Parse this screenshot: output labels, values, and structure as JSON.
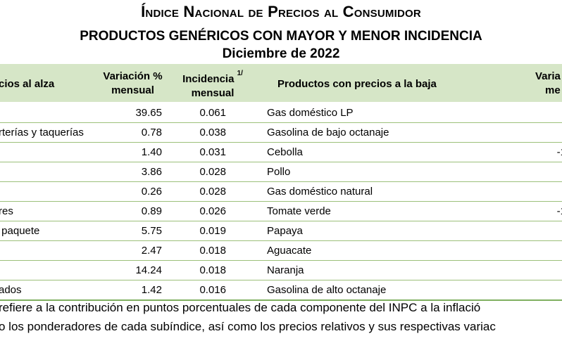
{
  "title": {
    "line1": "Índice Nacional de Precios al Consumidor",
    "line2": "PRODUCTOS GENÉRICOS CON MAYOR Y MENOR INCIDENCIA",
    "line3": "Diciembre de 2022"
  },
  "headers": {
    "up_products": "cios al alza",
    "variation_line1": "Variación %",
    "variation_line2": "mensual",
    "incidence_line1": "Incidencia",
    "incidence_sup": "1/",
    "incidence_line2": "mensual",
    "down_products": "Productos con precios a la baja",
    "down_variation_line1": "Varia",
    "down_variation_line2": "me"
  },
  "rows": [
    {
      "up": "",
      "var": "39.65",
      "inc": "0.061",
      "down": "Gas doméstico LP",
      "dvar": "-"
    },
    {
      "up": "rterías y taquerías",
      "var": "0.78",
      "inc": "0.038",
      "down": "Gasolina de bajo octanaje",
      "dvar": "-"
    },
    {
      "up": "",
      "var": "1.40",
      "inc": "0.031",
      "down": "Cebolla",
      "dvar": "-1"
    },
    {
      "up": "",
      "var": "3.86",
      "inc": "0.028",
      "down": "Pollo",
      "dvar": "-"
    },
    {
      "up": "",
      "var": "0.26",
      "inc": "0.028",
      "down": "Gas doméstico natural",
      "dvar": "-"
    },
    {
      "up": "res",
      "var": "0.89",
      "inc": "0.026",
      "down": "Tomate verde",
      "dvar": "-1"
    },
    {
      "up": " paquete",
      "var": "5.75",
      "inc": "0.019",
      "down": "Papaya",
      "dvar": "-"
    },
    {
      "up": "",
      "var": "2.47",
      "inc": "0.018",
      "down": "Aguacate",
      "dvar": "-"
    },
    {
      "up": "",
      "var": "14.24",
      "inc": "0.018",
      "down": "Naranja",
      "dvar": "-"
    },
    {
      "up": "ados",
      "var": "1.42",
      "inc": "0.016",
      "down": "Gasolina de alto octanaje",
      "dvar": "-"
    }
  ],
  "notes": {
    "line1": "refiere a la contribución en puntos porcentuales de cada componente del INPC a la inflació",
    "line2": "o los ponderadores de cada subíndice, así como los precios relativos y sus respectivas variac"
  }
}
